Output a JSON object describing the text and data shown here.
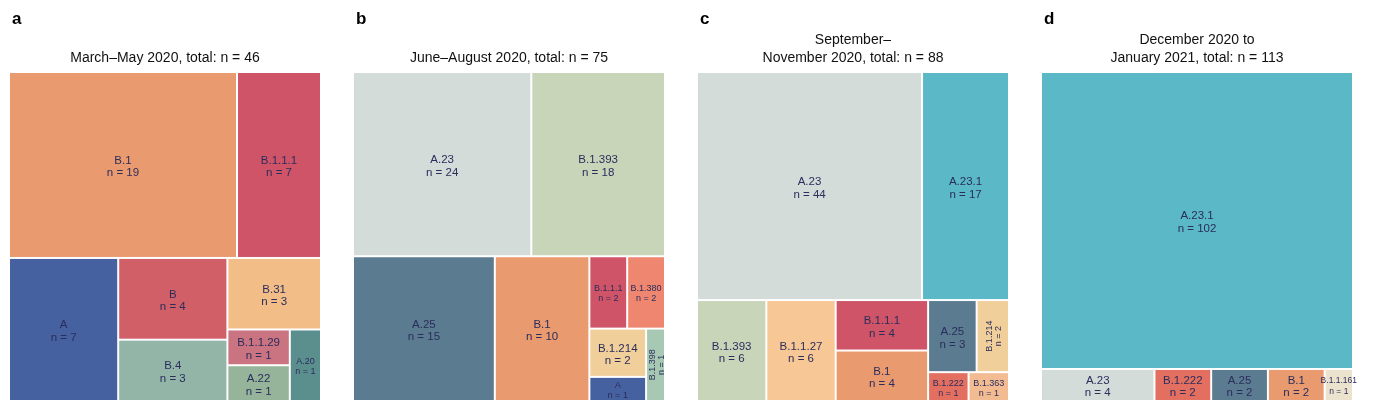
{
  "chart_data": [
    {
      "type": "other",
      "title": "March–May 2020, total: n = 46",
      "annotations": [
        "a"
      ],
      "categories": [
        "B.1",
        "B.1.1.1",
        "A",
        "B",
        "B.4",
        "B.31",
        "B.1.1.29",
        "A.22",
        "A.20"
      ],
      "values": [
        19,
        7,
        7,
        4,
        3,
        3,
        1,
        1,
        1
      ],
      "value_labels": [
        "n = 19",
        "n = 7",
        "n = 7",
        "n = 4",
        "n = 3",
        "n = 3",
        "n = 1",
        "n = 1",
        "n = 1"
      ],
      "colors": [
        "#ea9a6f",
        "#cf5468",
        "#4661a0",
        "#d05f67",
        "#92b5a8",
        "#f2bd86",
        "#c97480",
        "#95b49a",
        "#5b8f8e"
      ]
    },
    {
      "type": "other",
      "title": "June–August 2020, total: n = 75",
      "annotations": [
        "b"
      ],
      "categories": [
        "A.23",
        "B.1.393",
        "A.25",
        "B.1",
        "B.1.1.1",
        "B.1.380",
        "B.1.214",
        "A",
        "B.1.398"
      ],
      "values": [
        24,
        18,
        15,
        10,
        2,
        2,
        2,
        1,
        1
      ],
      "value_labels": [
        "n = 24",
        "n = 18",
        "n = 15",
        "n = 10",
        "n = 2",
        "n = 2",
        "n = 2",
        "n = 1",
        "n = 1"
      ],
      "colors": [
        "#d3dcd9",
        "#c8d5b9",
        "#5b7b90",
        "#ea9a6f",
        "#cf5468",
        "#ee8670",
        "#f0cf9a",
        "#4661a0",
        "#a7c8b3"
      ]
    },
    {
      "type": "other",
      "title": "September–\nNovember 2020, total: n = 88",
      "annotations": [
        "c"
      ],
      "categories": [
        "A.23",
        "A.23.1",
        "B.1.393",
        "B.1.1.27",
        "B.1.1.1",
        "B.1",
        "A.25",
        "B.1.214",
        "B.1.222",
        "B.1.363"
      ],
      "values": [
        44,
        17,
        6,
        6,
        4,
        4,
        3,
        2,
        1,
        1
      ],
      "value_labels": [
        "n = 44",
        "n = 17",
        "n = 6",
        "n = 6",
        "n = 4",
        "n = 4",
        "n = 3",
        "n = 2",
        "n = 1",
        "n = 1"
      ],
      "colors": [
        "#d3dcd9",
        "#5ab8c7",
        "#c8d5b9",
        "#f7c796",
        "#cf5468",
        "#ea9a6f",
        "#5b7b90",
        "#f0cf9a",
        "#e26f60",
        "#f2bb92"
      ]
    },
    {
      "type": "other",
      "title": "December 2020 to\nJanuary 2021, total: n = 113",
      "annotations": [
        "d"
      ],
      "categories": [
        "A.23.1",
        "A.23",
        "B.1.222",
        "A.25",
        "B.1",
        "B.1.1.161"
      ],
      "values": [
        102,
        4,
        2,
        2,
        2,
        1
      ],
      "value_labels": [
        "n = 102",
        "n = 4",
        "n = 2",
        "n = 2",
        "n = 2",
        "n = 1"
      ],
      "colors": [
        "#5ab8c7",
        "#d3dcd9",
        "#e26f60",
        "#5b7b90",
        "#ea9a6f",
        "#ece3cf"
      ]
    }
  ]
}
